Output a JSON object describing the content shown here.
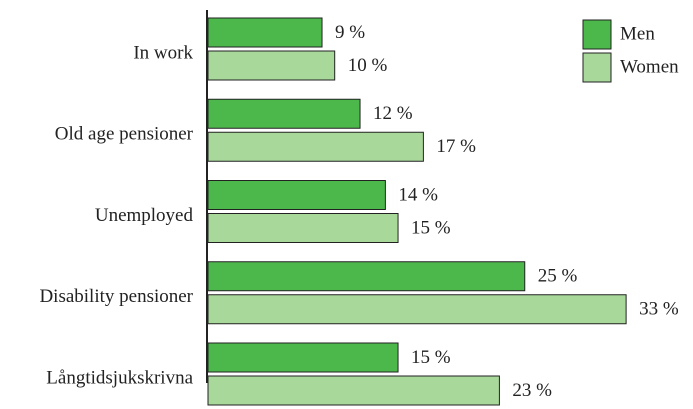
{
  "chart_data": {
    "type": "bar",
    "orientation": "horizontal",
    "categories": [
      "In work",
      "Old age pensioner",
      "Unemployed",
      "Disability pensioner",
      "Långtidsjukskrivna"
    ],
    "series": [
      {
        "name": "Men",
        "color": "#4cb84c",
        "values": [
          9,
          12,
          14,
          25,
          15
        ],
        "value_labels": [
          "9 %",
          "12 %",
          "14 %",
          "25 %",
          "15 %"
        ]
      },
      {
        "name": "Women",
        "color": "#a8d89a",
        "values": [
          10,
          17,
          15,
          33,
          23
        ],
        "value_labels": [
          "10 %",
          "17 %",
          "15 %",
          "33 %",
          "23 %"
        ]
      }
    ],
    "legend": "top-right"
  }
}
